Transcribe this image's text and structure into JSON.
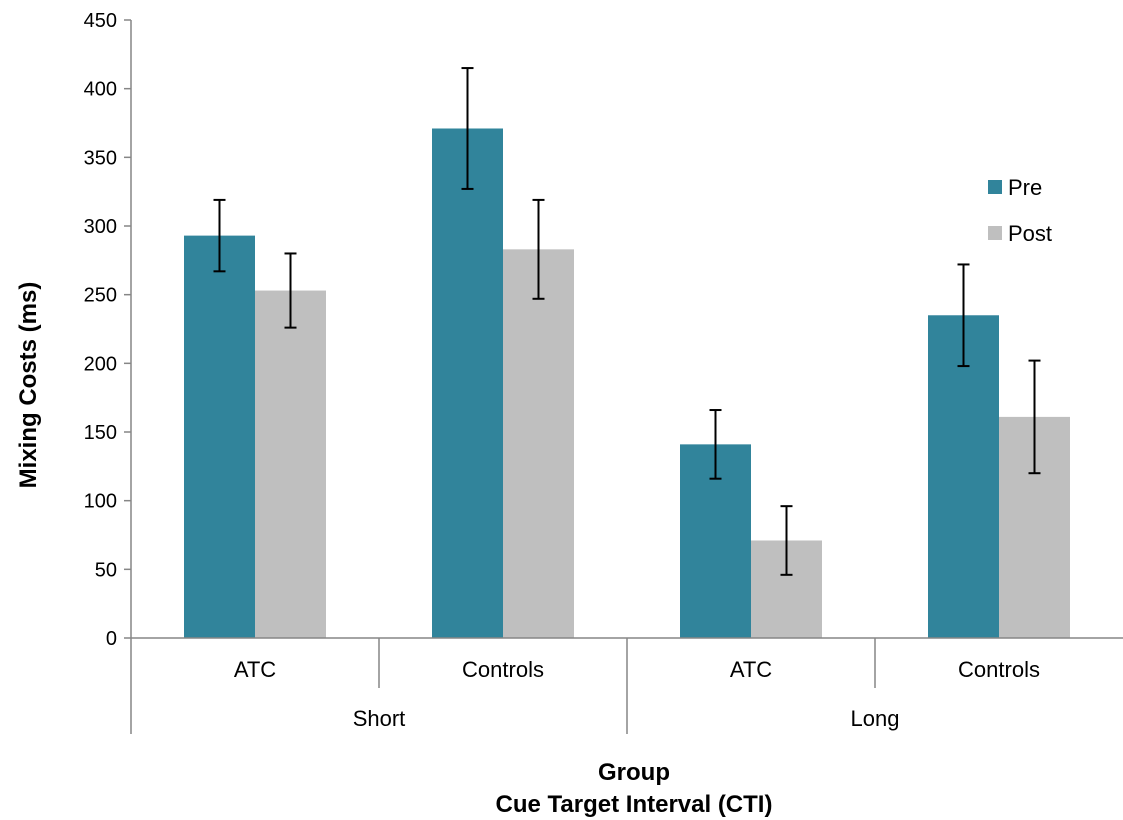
{
  "chart_data": {
    "type": "bar",
    "title": "",
    "ylabel": "Mixing Costs (ms)",
    "xlabel_lines": [
      "Group",
      "Cue Target Interval (CTI)"
    ],
    "ylim": [
      0,
      450
    ],
    "yticks": [
      0,
      50,
      100,
      150,
      200,
      250,
      300,
      350,
      400,
      450
    ],
    "categories": [
      "ATC",
      "Controls",
      "ATC",
      "Controls"
    ],
    "category_groups": [
      {
        "label": "Short",
        "categories": [
          "ATC",
          "Controls"
        ]
      },
      {
        "label": "Long",
        "categories": [
          "ATC",
          "Controls"
        ]
      }
    ],
    "series": [
      {
        "name": "Pre",
        "color": "#31849b",
        "values": [
          293,
          371,
          141,
          235
        ],
        "errors": [
          26,
          44,
          25,
          37
        ]
      },
      {
        "name": "Post",
        "color": "#bfbfbf",
        "values": [
          253,
          283,
          71,
          161
        ],
        "errors": [
          27,
          36,
          25,
          41
        ]
      }
    ],
    "grid": false,
    "legend_position": "right"
  }
}
